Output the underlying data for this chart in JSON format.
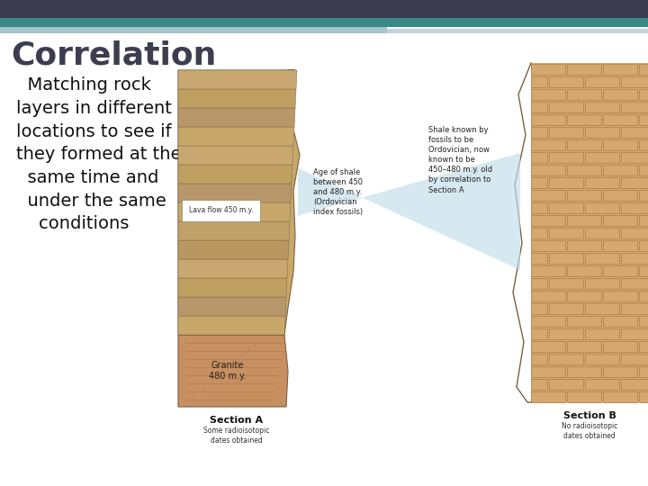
{
  "title": "Correlation",
  "body_text": "  Matching rock\nlayers in different\nlocations to see if\nthey formed at the\n  same time and\n  under the same\n    conditions",
  "bg_color": "#ffffff",
  "title_color": "#3d3d4f",
  "body_color": "#111111",
  "title_fontsize": 26,
  "body_fontsize": 14,
  "fig_width": 7.2,
  "fig_height": 5.4,
  "dpi": 100,
  "header_dark": "#3c3c50",
  "header_teal": "#3a8a8a",
  "header_light": "#a8c4cc",
  "header_lighter": "#c0d4da",
  "section_a_label": "Section A",
  "section_a_sub": "Some radioisotopic\ndates obtained",
  "section_b_label": "Section B",
  "section_b_sub": "No radioisotopic\ndates obtained",
  "lava_label": "Lava flow 450 m.y.",
  "granite_label": "Granite\n480 m.y.",
  "age_label": "Age of shale\nbetween 450\nand 480 m.y.\n(Ordovician\nindex fossils)",
  "shale_label": "Shale known by\nfossils to be\nOrdovician, now\nknown to be\n450–480 m.y. old\nby correlation to\nSection A",
  "sandstone_color": "#c8a86a",
  "granite_color": "#c89060",
  "brick_color": "#d4a870",
  "brick_mortar": "#b88c50",
  "connector_color": "#c0dce8",
  "connector_alpha": 0.65,
  "layer_colors": [
    "#c8a86a",
    "#b8986a",
    "#c0a060",
    "#c8a870",
    "#b89860",
    "#c0a268",
    "#c8a86a",
    "#b8986a",
    "#c0a060",
    "#c8a870"
  ],
  "outline_color": "#7a6040"
}
